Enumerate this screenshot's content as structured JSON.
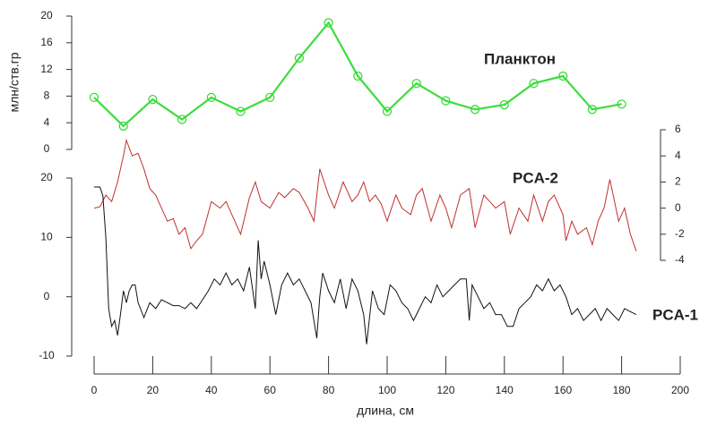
{
  "chart_data": [
    {
      "type": "line",
      "ylabel": "млн/ств.гр",
      "ylim": [
        0,
        20
      ],
      "yticks": [
        0,
        4,
        8,
        12,
        16,
        20
      ],
      "axis_side": "left",
      "marker": "circle",
      "x": [
        0,
        10,
        20,
        30,
        40,
        50,
        60,
        70,
        80,
        90,
        100,
        110,
        120,
        130,
        140,
        150,
        160,
        170,
        180
      ],
      "series": [
        {
          "name": "Планктон",
          "color": "#3ddc3d",
          "values": [
            7.8,
            3.5,
            7.5,
            4.5,
            7.8,
            5.7,
            7.8,
            13.7,
            19,
            11,
            5.7,
            9.9,
            7.3,
            6,
            6.7,
            9.9,
            11,
            6,
            6.8
          ]
        }
      ]
    },
    {
      "type": "line",
      "ylim": [
        -4,
        6
      ],
      "yticks": [
        -4,
        -2,
        0,
        2,
        4,
        6
      ],
      "axis_side": "right",
      "x": [
        0,
        2,
        4,
        6,
        8,
        10,
        11,
        13,
        15,
        17,
        19,
        21,
        23,
        25,
        27,
        29,
        31,
        33,
        35,
        37,
        40,
        43,
        45,
        48,
        50,
        53,
        55,
        57,
        60,
        63,
        65,
        68,
        70,
        73,
        75,
        77,
        80,
        82,
        85,
        88,
        90,
        92,
        94,
        96,
        98,
        100,
        103,
        105,
        108,
        110,
        112,
        115,
        118,
        120,
        122,
        125,
        128,
        130,
        133,
        135,
        137,
        140,
        142,
        145,
        148,
        150,
        153,
        155,
        157,
        160,
        161,
        163,
        165,
        168,
        170,
        172,
        174,
        176,
        179,
        181,
        183,
        185
      ],
      "series": [
        {
          "name": "PCA-2",
          "color": "#c0302e",
          "values": [
            0,
            0.1,
            1,
            0.5,
            2,
            4,
            5.2,
            4,
            4.2,
            3,
            1.5,
            1,
            0,
            -1,
            -0.8,
            -2,
            -1.5,
            -3.1,
            -2.5,
            -2,
            0.5,
            0,
            0.5,
            -1,
            -2,
            0.8,
            2,
            0.5,
            0,
            1.2,
            0.8,
            1.5,
            1.2,
            0,
            -1,
            3,
            1,
            0,
            2,
            0.5,
            1,
            2,
            0.5,
            1,
            0.3,
            -1,
            1,
            0,
            -0.5,
            1,
            1.5,
            -1,
            1,
            0,
            -1.5,
            1,
            1.5,
            -1.5,
            1,
            0.5,
            0,
            0.5,
            -2,
            0,
            -1,
            1,
            -1,
            0.5,
            1,
            -0.5,
            -2.5,
            -1,
            -2,
            -1.5,
            -2.8,
            -1,
            0,
            2.2,
            -1,
            0,
            -2,
            -3.3
          ]
        }
      ]
    },
    {
      "type": "line",
      "ylim": [
        -10,
        20
      ],
      "yticks": [
        -10,
        0,
        10,
        20
      ],
      "axis_side": "left",
      "xlabel": "длина, см",
      "xlim": [
        0,
        200
      ],
      "xticks": [
        0,
        20,
        40,
        60,
        80,
        100,
        120,
        140,
        160,
        180,
        200
      ],
      "x": [
        0,
        2,
        3,
        4,
        5,
        6,
        7,
        8,
        9,
        10,
        11,
        12,
        13,
        14,
        15,
        17,
        19,
        21,
        23,
        25,
        27,
        29,
        31,
        33,
        35,
        37,
        39,
        41,
        43,
        45,
        47,
        49,
        51,
        53,
        55,
        56,
        57,
        58,
        60,
        62,
        64,
        66,
        68,
        70,
        72,
        74,
        76,
        77,
        78,
        80,
        82,
        84,
        86,
        88,
        90,
        92,
        93,
        95,
        97,
        99,
        101,
        103,
        105,
        107,
        109,
        111,
        113,
        115,
        117,
        119,
        121,
        123,
        125,
        127,
        128,
        129,
        131,
        133,
        135,
        137,
        139,
        141,
        143,
        145,
        147,
        149,
        151,
        153,
        155,
        157,
        159,
        161,
        163,
        165,
        167,
        169,
        171,
        173,
        175,
        177,
        179,
        181,
        183,
        185
      ],
      "series": [
        {
          "name": "PCA-1",
          "color": "#111111",
          "values": [
            18.5,
            18.5,
            17,
            10,
            -2,
            -5,
            -4,
            -6.5,
            -3,
            1,
            -1,
            1,
            2,
            2,
            -1,
            -3.5,
            -1,
            -2,
            -0.5,
            -1,
            -1.5,
            -1.5,
            -2,
            -1,
            -2,
            -0.5,
            1,
            3,
            2,
            4,
            2,
            3,
            1,
            5,
            -2,
            9.5,
            3,
            6,
            2,
            -3,
            2,
            4,
            2,
            3,
            1,
            -1,
            -7,
            0,
            4,
            1,
            -1,
            3,
            -2,
            3,
            1,
            -3,
            -8,
            1,
            -2,
            -3,
            2,
            1,
            -1,
            -2,
            -4,
            -2,
            0,
            -1,
            2,
            0,
            1,
            2,
            3,
            3,
            -4,
            2,
            0,
            -2,
            -1,
            -3,
            -3,
            -5,
            -5,
            -2,
            -1,
            0,
            2,
            1,
            3,
            1,
            2,
            0,
            -3,
            -2,
            -4,
            -3,
            -2,
            -4,
            -2,
            -3,
            -4,
            -2,
            -2.5,
            -3
          ]
        }
      ]
    }
  ]
}
